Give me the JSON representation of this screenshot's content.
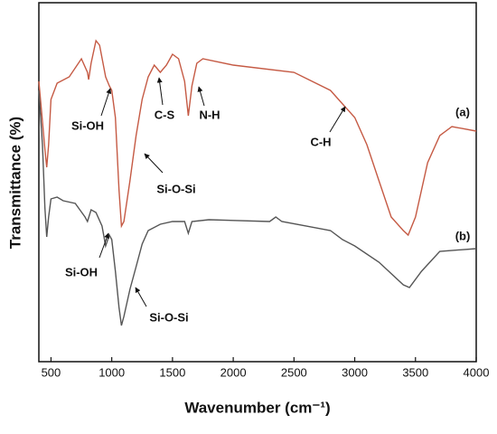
{
  "chart_data": {
    "type": "line",
    "xlabel": "Wavenumber (cm⁻¹)",
    "ylabel": "Transmittance (%)",
    "xlim": [
      400,
      4000
    ],
    "xticks": [
      500,
      1000,
      1500,
      2000,
      2500,
      3000,
      3500,
      4000
    ],
    "ylim": [
      0,
      100
    ],
    "annotations": [
      "Si-OH",
      "C-S",
      "N-H",
      "Si-O-Si",
      "C-H",
      "Si-OH",
      "Si-O-Si"
    ],
    "series": [
      {
        "name": "(a)",
        "color": "#c55a44",
        "x": [
          400,
          420,
          450,
          465,
          480,
          500,
          550,
          650,
          750,
          800,
          810,
          830,
          870,
          900,
          950,
          980,
          1000,
          1030,
          1060,
          1080,
          1100,
          1150,
          1200,
          1250,
          1300,
          1350,
          1400,
          1450,
          1500,
          1550,
          1600,
          1630,
          1660,
          1700,
          1750,
          2000,
          2500,
          2800,
          2900,
          3000,
          3100,
          3200,
          3300,
          3400,
          3440,
          3500,
          3600,
          3700,
          3800,
          4000
        ],
        "values": [
          77.5,
          70,
          58.75,
          53.75,
          60,
          72.5,
          77,
          78.75,
          83.75,
          80,
          78,
          82.5,
          88.75,
          87.5,
          78.75,
          76.25,
          75,
          67.5,
          47.5,
          37.5,
          38.75,
          50,
          62.5,
          72.5,
          78.75,
          82,
          80,
          82,
          85,
          83.75,
          77.5,
          68,
          76.25,
          82.5,
          83.75,
          82,
          80,
          75,
          71.25,
          67.5,
          60,
          50,
          40,
          36.25,
          35,
          40,
          55,
          62.5,
          65,
          63.75
        ]
      },
      {
        "name": "(b)",
        "color": "#555555",
        "x": [
          400,
          430,
          450,
          465,
          480,
          500,
          550,
          600,
          700,
          780,
          800,
          830,
          870,
          920,
          950,
          980,
          1000,
          1030,
          1060,
          1080,
          1100,
          1150,
          1200,
          1250,
          1300,
          1400,
          1500,
          1600,
          1630,
          1660,
          1800,
          2300,
          2350,
          2400,
          2800,
          2900,
          3000,
          3200,
          3400,
          3450,
          3550,
          3700,
          4000
        ],
        "values": [
          75,
          60,
          42.5,
          34.5,
          40,
          45,
          45.5,
          44.5,
          43.75,
          40,
          38.75,
          42,
          41.25,
          37.5,
          32,
          35,
          33.75,
          25,
          15,
          10,
          12.5,
          20,
          26.25,
          32.5,
          36.25,
          38,
          38.75,
          38.75,
          35.5,
          38.75,
          39.25,
          38.75,
          40,
          38.75,
          36.25,
          33.75,
          32,
          27.5,
          21.25,
          20.5,
          25,
          30.5,
          31.25
        ]
      }
    ]
  }
}
